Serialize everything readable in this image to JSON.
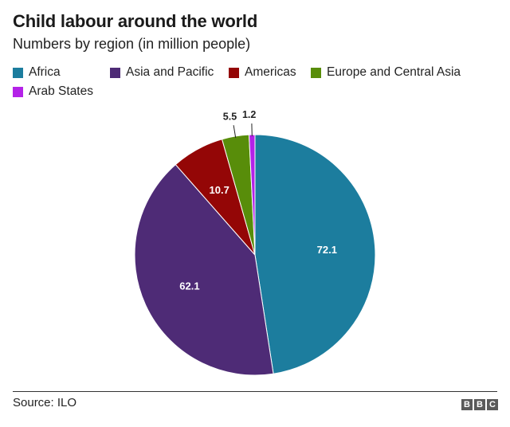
{
  "chart_data": {
    "type": "pie",
    "title": "Child labour around the world",
    "subtitle": "Numbers by region (in million people)",
    "slices": [
      {
        "name": "Africa",
        "value": 72.1,
        "label": "72.1",
        "color": "#1c7d9e"
      },
      {
        "name": "Asia and Pacific",
        "value": 62.1,
        "label": "62.1",
        "color": "#4e2b76"
      },
      {
        "name": "Americas",
        "value": 10.7,
        "label": "10.7",
        "color": "#940606"
      },
      {
        "name": "Europe and Central Asia",
        "value": 5.5,
        "label": "5.5",
        "color": "#588d0a"
      },
      {
        "name": "Arab States",
        "value": 1.2,
        "label": "1.2",
        "color": "#b422e8"
      }
    ],
    "legend_position": "top"
  },
  "footer": {
    "source": "Source: ILO",
    "logo_letters": [
      "B",
      "B",
      "C"
    ]
  }
}
